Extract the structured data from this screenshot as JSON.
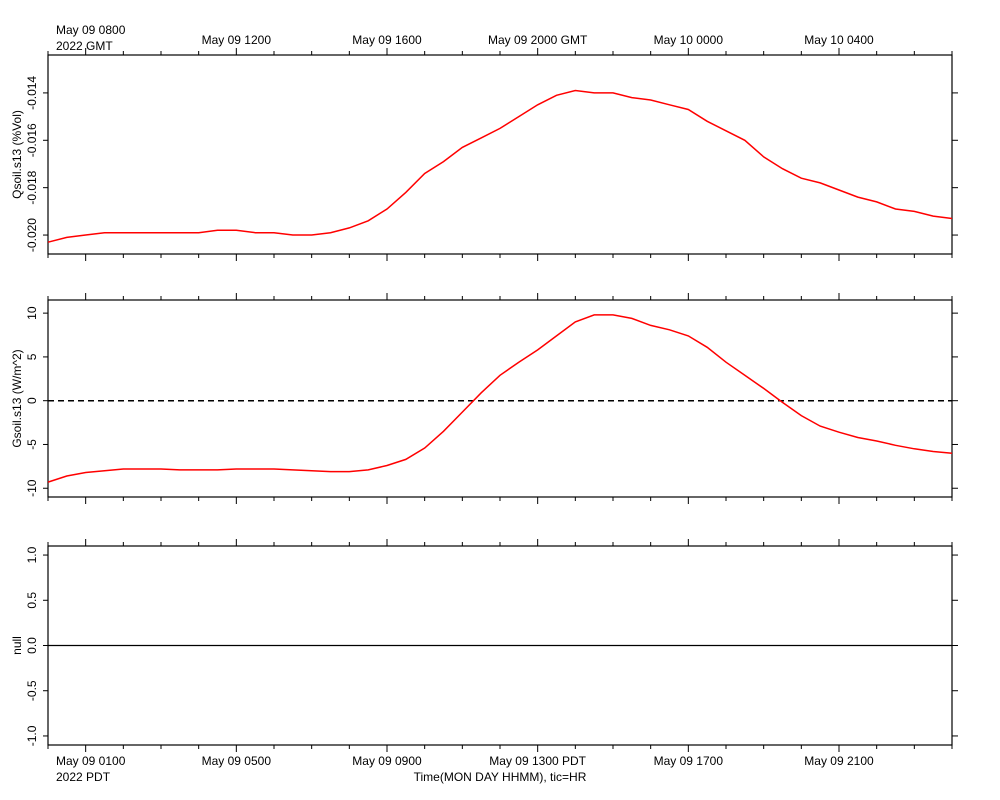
{
  "header": {
    "gmt_first_date": "May 09 0800",
    "gmt_first_year": "2022 GMT",
    "gmt_ticks": [
      "May 09 1200",
      "May 09 1600",
      "May 09 2000 GMT",
      "May 10 0000",
      "May 10 0400"
    ]
  },
  "footer": {
    "pdt_first_date": "May 09 0100",
    "pdt_first_year": "2022 PDT",
    "pdt_ticks": [
      "May 09 0500",
      "May 09 0900",
      "May 09 1300 PDT",
      "May 09 1700",
      "May 09 2100"
    ],
    "xlabel": "Time(MON DAY HHMM), tic=HR"
  },
  "colors": {
    "series": "#ff0000",
    "axis": "#000000",
    "zero_line": "#000000"
  },
  "chart_data": [
    {
      "type": "line",
      "ylabel": "Qsoil.s13 (%Vol)",
      "ylim": [
        -0.0208,
        -0.0124
      ],
      "yticks": [
        -0.02,
        -0.018,
        -0.016,
        -0.014
      ],
      "ytick_labels": [
        "-0.020",
        "-0.018",
        "-0.016",
        "-0.014"
      ],
      "x_hours_pdt": [
        0.0,
        0.5,
        1.0,
        1.5,
        2.0,
        2.5,
        3.0,
        3.5,
        4.0,
        4.5,
        5.0,
        5.5,
        6.0,
        6.5,
        7.0,
        7.5,
        8.0,
        8.5,
        9.0,
        9.5,
        10.0,
        10.5,
        11.0,
        11.5,
        12.0,
        12.5,
        13.0,
        13.5,
        14.0,
        14.5,
        15.0,
        15.5,
        16.0,
        16.5,
        17.0,
        17.5,
        18.0,
        18.5,
        19.0,
        19.5,
        20.0,
        20.5,
        21.0,
        21.5,
        22.0,
        22.5,
        23.0,
        23.5,
        24.0
      ],
      "series": [
        {
          "values": [
            -0.0203,
            -0.0201,
            -0.02,
            -0.0199,
            -0.0199,
            -0.0199,
            -0.0199,
            -0.0199,
            -0.0199,
            -0.0198,
            -0.0198,
            -0.0199,
            -0.0199,
            -0.02,
            -0.02,
            -0.0199,
            -0.0197,
            -0.0194,
            -0.0189,
            -0.0182,
            -0.0174,
            -0.0169,
            -0.0163,
            -0.0159,
            -0.0155,
            -0.015,
            -0.0145,
            -0.0141,
            -0.0139,
            -0.014,
            -0.014,
            -0.0142,
            -0.0143,
            -0.0145,
            -0.0147,
            -0.0152,
            -0.0156,
            -0.016,
            -0.0167,
            -0.0172,
            -0.0176,
            -0.0178,
            -0.0181,
            -0.0184,
            -0.0186,
            -0.0189,
            -0.019,
            -0.0192,
            -0.0193
          ]
        }
      ]
    },
    {
      "type": "line",
      "ylabel": "Gsoil.s13 (W/m^2)",
      "ylim": [
        -11,
        11.5
      ],
      "yticks": [
        -10,
        -5,
        0,
        5,
        10
      ],
      "ytick_labels": [
        "-10",
        "-5",
        "0",
        "5",
        "10"
      ],
      "reference_line": 0,
      "x_hours_pdt": [
        0.0,
        0.5,
        1.0,
        1.5,
        2.0,
        2.5,
        3.0,
        3.5,
        4.0,
        4.5,
        5.0,
        5.5,
        6.0,
        6.5,
        7.0,
        7.5,
        8.0,
        8.5,
        9.0,
        9.5,
        10.0,
        10.5,
        11.0,
        11.5,
        12.0,
        12.5,
        13.0,
        13.5,
        14.0,
        14.5,
        15.0,
        15.5,
        16.0,
        16.5,
        17.0,
        17.5,
        18.0,
        18.5,
        19.0,
        19.5,
        20.0,
        20.5,
        21.0,
        21.5,
        22.0,
        22.5,
        23.0,
        23.5,
        24.0
      ],
      "series": [
        {
          "values": [
            -9.3,
            -8.6,
            -8.2,
            -8.0,
            -7.8,
            -7.8,
            -7.8,
            -7.9,
            -7.9,
            -7.9,
            -7.8,
            -7.8,
            -7.8,
            -7.9,
            -8.0,
            -8.1,
            -8.1,
            -7.9,
            -7.4,
            -6.7,
            -5.4,
            -3.5,
            -1.3,
            0.9,
            2.9,
            4.4,
            5.8,
            7.4,
            9.0,
            9.8,
            9.8,
            9.4,
            8.6,
            8.1,
            7.4,
            6.1,
            4.4,
            2.9,
            1.4,
            -0.2,
            -1.7,
            -2.9,
            -3.6,
            -4.2,
            -4.6,
            -5.1,
            -5.5,
            -5.8,
            -6.0
          ]
        }
      ]
    },
    {
      "type": "line",
      "ylabel": "null",
      "ylim": [
        -1.1,
        1.1
      ],
      "yticks": [
        -1.0,
        -0.5,
        0.0,
        0.5,
        1.0
      ],
      "ytick_labels": [
        "-1.0",
        "-0.5",
        "0.0",
        "0.5",
        "1.0"
      ],
      "reference_line": 0,
      "series": []
    }
  ]
}
